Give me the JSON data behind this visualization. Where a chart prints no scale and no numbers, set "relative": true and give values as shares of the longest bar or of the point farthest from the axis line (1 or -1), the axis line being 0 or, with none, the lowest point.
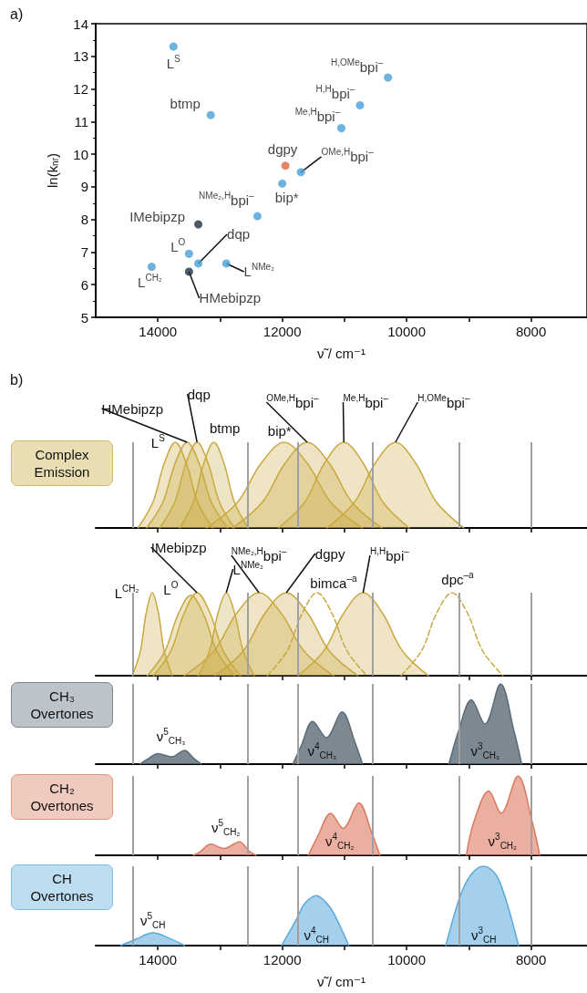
{
  "chart_data": [
    {
      "type": "scatter",
      "title": "a)",
      "xlabel": "ν̃ / cm⁻¹",
      "ylabel": "ln(k$_{nr}$)",
      "marker": "circle",
      "x": [
        13750,
        13150,
        10300,
        10750,
        11050,
        11950,
        11700,
        12000,
        12400,
        13350,
        13500,
        13350,
        12900,
        14100,
        13500
      ],
      "values": [
        13.3,
        11.2,
        12.35,
        11.5,
        10.8,
        9.65,
        9.45,
        9.1,
        8.1,
        7.85,
        6.95,
        6.65,
        6.65,
        6.55,
        6.4
      ],
      "colors": [
        "#4a9fd6",
        "#4a9fd6",
        "#4a9fd6",
        "#4a9fd6",
        "#4a9fd6",
        "#e0663e",
        "#4a9fd6",
        "#4a9fd6",
        "#4a9fd6",
        "#1e3140",
        "#4a9fd6",
        "#4a9fd6",
        "#4a9fd6",
        "#4a9fd6",
        "#1e3140"
      ],
      "xlim": [
        15000,
        7100
      ],
      "xticks": [
        14000,
        {
          "value": 13000,
          "label": null
        },
        12000,
        {
          "value": 11000,
          "label": null
        },
        10000,
        {
          "value": 9000,
          "label": null
        },
        8000
      ],
      "ylim": [
        5,
        14
      ],
      "yticks": [
        5,
        6,
        7,
        8,
        9,
        10,
        11,
        12,
        13,
        14
      ],
      "annotations": [
        {
          "text": "L$^{S}$",
          "x": 13750,
          "y": 13.3
        },
        {
          "text": "btmp",
          "x": 13150,
          "y": 11.2
        },
        {
          "text": "$^{H,OMe}$bpi$^{–}$",
          "x": 10300,
          "y": 12.35
        },
        {
          "text": "$^{H,H}$bpi$^{–}$",
          "x": 10750,
          "y": 11.5
        },
        {
          "text": "$^{Me,H}$bpi$^{–}$",
          "x": 11050,
          "y": 10.8
        },
        {
          "text": "dgpy",
          "x": 11950,
          "y": 9.65
        },
        {
          "text": "$^{OMe,H}$bpi$^{–}$",
          "x": 11700,
          "y": 9.45
        },
        {
          "text": "bip*",
          "x": 12000,
          "y": 9.1
        },
        {
          "text": "$^{NMe₂,H}$bpi$^{–}$",
          "x": 12400,
          "y": 8.1
        },
        {
          "text": "IMebipzp",
          "x": 13350,
          "y": 7.85
        },
        {
          "text": "L$^{O}$",
          "x": 13500,
          "y": 6.95
        },
        {
          "text": "dqp",
          "x": 13350,
          "y": 6.65
        },
        {
          "text": "L$^{NMe₂}$",
          "x": 12900,
          "y": 6.65
        },
        {
          "text": "L$^{CH₂}$",
          "x": 14100,
          "y": 6.55
        },
        {
          "text": "HMebipzp",
          "x": 13500,
          "y": 6.4
        }
      ]
    },
    {
      "type": "area",
      "title": "b)",
      "ylabel": "Complex Emission",
      "relative": true,
      "tick_labels": false,
      "xlim": [
        15000,
        7100
      ],
      "xticks": [
        14000,
        13000,
        12000,
        11000,
        10000,
        9000,
        8000
      ],
      "ref_lines": [
        {
          "axis": "x",
          "value": 14400,
          "color": "#a0a0a0"
        },
        {
          "axis": "x",
          "value": 12550,
          "color": "#a0a0a0"
        },
        {
          "axis": "x",
          "value": 11750,
          "color": "#a0a0a0"
        },
        {
          "axis": "x",
          "value": 10550,
          "color": "#a0a0a0"
        },
        {
          "axis": "x",
          "value": 9150,
          "color": "#a0a0a0"
        },
        {
          "axis": "x",
          "value": 8000,
          "color": "#a0a0a0"
        }
      ],
      "series": [
        {
          "name": "L$^{S}$",
          "color": "#c9a93f",
          "x": [
            14320,
            14080,
            13900,
            13720,
            13540,
            13360,
            13120
          ],
          "values": [
            0,
            0.3,
            0.75,
            1,
            0.75,
            0.3,
            0
          ]
        },
        {
          "name": "HMebipzp",
          "color": "#c7a841",
          "x": [
            14180,
            13920,
            13725,
            13530,
            13335,
            13140,
            12880
          ],
          "values": [
            0,
            0.3,
            0.75,
            1,
            0.75,
            0.3,
            0
          ]
        },
        {
          "name": "dqp",
          "color": "#cbaa3d",
          "x": [
            13970,
            13730,
            13550,
            13370,
            13190,
            13010,
            12770
          ],
          "values": [
            0,
            0.3,
            0.75,
            1,
            0.75,
            0.3,
            0
          ]
        },
        {
          "name": "btmp",
          "color": "#c8aa42",
          "x": [
            13650,
            13430,
            13265,
            13100,
            12935,
            12770,
            12550
          ],
          "values": [
            0,
            0.3,
            0.75,
            1,
            0.75,
            0.3,
            0
          ]
        },
        {
          "name": "bip*",
          "color": "#caa840",
          "x": [
            13220,
            12720,
            12345,
            11970,
            11595,
            11220,
            10720
          ],
          "values": [
            0,
            0.3,
            0.75,
            1,
            0.75,
            0.3,
            0
          ]
        },
        {
          "name": "$^{OMe,H}$bpi$^{–}$",
          "color": "#c8a73e",
          "x": [
            12800,
            12320,
            11960,
            11600,
            11240,
            10880,
            10400
          ],
          "values": [
            0,
            0.3,
            0.75,
            1,
            0.75,
            0.3,
            0
          ]
        },
        {
          "name": "$^{Me,H}$bpi$^{–}$",
          "color": "#cba941",
          "x": [
            12060,
            11640,
            11325,
            11010,
            10695,
            10380,
            9960
          ],
          "values": [
            0,
            0.3,
            0.75,
            1,
            0.75,
            0.3,
            0
          ]
        },
        {
          "name": "$^{H,OMe}$bpi$^{–}$",
          "color": "#c9a93f",
          "x": [
            11280,
            10840,
            10510,
            10180,
            9850,
            9520,
            9080
          ],
          "values": [
            0,
            0.3,
            0.75,
            1,
            0.75,
            0.3,
            0
          ]
        }
      ]
    },
    {
      "type": "area",
      "relative": true,
      "tick_labels": false,
      "xlim": [
        15000,
        7100
      ],
      "xticks": [
        14000,
        13000,
        12000,
        11000,
        10000,
        9000,
        8000
      ],
      "ref_lines": [
        {
          "axis": "x",
          "value": 14400,
          "color": "#a0a0a0"
        },
        {
          "axis": "x",
          "value": 12550,
          "color": "#a0a0a0"
        },
        {
          "axis": "x",
          "value": 11750,
          "color": "#a0a0a0"
        },
        {
          "axis": "x",
          "value": 10550,
          "color": "#a0a0a0"
        },
        {
          "axis": "x",
          "value": 9150,
          "color": "#a0a0a0"
        },
        {
          "axis": "x",
          "value": 8000,
          "color": "#a0a0a0"
        }
      ],
      "series": [
        {
          "name": "L$^{CH₂}$",
          "color": "#c9a93f",
          "x": [
            14410,
            14280,
            14190,
            14090,
            13990,
            13900,
            13770
          ],
          "values": [
            0,
            0.3,
            0.75,
            1,
            0.75,
            0.3,
            0
          ]
        },
        {
          "name": "L$^{O}$",
          "color": "#c7a841",
          "x": [
            14170,
            13890,
            13680,
            13470,
            13260,
            13050,
            12770
          ],
          "values": [
            0,
            0.29,
            0.73,
            0.97,
            0.73,
            0.29,
            0
          ]
        },
        {
          "name": "IMebipzp",
          "color": "#cbaa3d",
          "x": [
            14070,
            13790,
            13580,
            13370,
            13160,
            12950,
            12670
          ],
          "values": [
            0,
            0.3,
            0.75,
            1,
            0.75,
            0.3,
            0
          ]
        },
        {
          "name": "L$^{NMe₂}$",
          "color": "#c8aa42",
          "x": [
            13350,
            13170,
            13035,
            12900,
            12765,
            12630,
            12450
          ],
          "values": [
            0,
            0.3,
            0.75,
            1,
            0.75,
            0.3,
            0
          ]
        },
        {
          "name": "$^{NMe₂,H}$bpi$^{–}$",
          "color": "#caa840",
          "x": [
            13575,
            13095,
            12735,
            12375,
            12015,
            11655,
            11175
          ],
          "values": [
            0,
            0.3,
            0.75,
            1,
            0.75,
            0.3,
            0
          ]
        },
        {
          "name": "dgpy",
          "color": "#c8a73e",
          "x": [
            13085,
            12625,
            12280,
            11935,
            11590,
            11245,
            10785
          ],
          "values": [
            0,
            0.3,
            0.75,
            1,
            0.75,
            0.3,
            0
          ]
        },
        {
          "name": "bimca$^{–a}$",
          "type": "line",
          "line_style": "dashed",
          "color": "#c9a93f",
          "x": [
            12240,
            11920,
            11680,
            11440,
            11200,
            10960,
            10640
          ],
          "values": [
            0,
            0.3,
            0.75,
            1,
            0.75,
            0.3,
            0
          ]
        },
        {
          "name": "$^{H,H}$bpi$^{–}$",
          "color": "#cba941",
          "x": [
            11750,
            11330,
            11015,
            10700,
            10385,
            10070,
            9650
          ],
          "values": [
            0,
            0.3,
            0.75,
            1,
            0.75,
            0.3,
            0
          ]
        },
        {
          "name": "dpc$^{–a}$",
          "type": "line",
          "line_style": "dashed",
          "color": "#c9a93f",
          "x": [
            10090,
            9760,
            9520,
            9270,
            9020,
            8780,
            8450
          ],
          "values": [
            0,
            0.3,
            0.75,
            1,
            0.75,
            0.3,
            0
          ]
        }
      ]
    },
    {
      "type": "area",
      "ylabel": "CH₃ Overtones",
      "relative": true,
      "tick_labels": false,
      "xlim": [
        15000,
        7100
      ],
      "xticks": [
        14000,
        13000,
        12000,
        11000,
        10000,
        9000,
        8000
      ],
      "ref_lines": [
        {
          "axis": "x",
          "value": 14400,
          "color": "#a0a0a0"
        },
        {
          "axis": "x",
          "value": 12550,
          "color": "#a0a0a0"
        },
        {
          "axis": "x",
          "value": 11750,
          "color": "#a0a0a0"
        },
        {
          "axis": "x",
          "value": 10550,
          "color": "#a0a0a0"
        },
        {
          "axis": "x",
          "value": 9150,
          "color": "#a0a0a0"
        },
        {
          "axis": "x",
          "value": 8000,
          "color": "#a0a0a0"
        }
      ],
      "series": [
        {
          "name": "ν$^{5}$$_{CH₃}$",
          "color": "#5b6c78",
          "x": [
            14290,
            14170,
            14000,
            13780,
            13570,
            13420,
            13300
          ],
          "values": [
            0,
            0.06,
            0.13,
            0.09,
            0.17,
            0.07,
            0
          ]
        },
        {
          "name": "ν$^{4}$$_{CH₃}$",
          "color": "#5b6c78",
          "x": [
            11830,
            11700,
            11510,
            11290,
            11040,
            10830,
            10710
          ],
          "values": [
            0,
            0.22,
            0.53,
            0.33,
            0.65,
            0.27,
            0
          ]
        },
        {
          "name": "ν$^{3}$$_{CH₃}$",
          "color": "#5b6c78",
          "x": [
            9320,
            9170,
            8960,
            8740,
            8490,
            8270,
            8150
          ],
          "values": [
            0,
            0.4,
            0.8,
            0.5,
            1,
            0.4,
            0
          ]
        }
      ]
    },
    {
      "type": "area",
      "ylabel": "CH₂ Overtones",
      "relative": true,
      "tick_labels": false,
      "xlim": [
        15000,
        7100
      ],
      "xticks": [
        14000,
        13000,
        12000,
        11000,
        10000,
        9000,
        8000
      ],
      "ref_lines": [
        {
          "axis": "x",
          "value": 14400,
          "color": "#a0a0a0"
        },
        {
          "axis": "x",
          "value": 12550,
          "color": "#a0a0a0"
        },
        {
          "axis": "x",
          "value": 11750,
          "color": "#a0a0a0"
        },
        {
          "axis": "x",
          "value": 10550,
          "color": "#a0a0a0"
        },
        {
          "axis": "x",
          "value": 9150,
          "color": "#a0a0a0"
        },
        {
          "axis": "x",
          "value": 8000,
          "color": "#a0a0a0"
        }
      ],
      "series": [
        {
          "name": "ν$^{5}$$_{CH₂}$",
          "color": "#dc7a60",
          "x": [
            13430,
            13330,
            13150,
            12940,
            12690,
            12530,
            12420
          ],
          "values": [
            0,
            0.04,
            0.14,
            0.085,
            0.17,
            0.05,
            0
          ]
        },
        {
          "name": "ν$^{4}$$_{CH₂}$",
          "color": "#dc7a60",
          "x": [
            11580,
            11430,
            11220,
            11020,
            10770,
            10560,
            10430
          ],
          "values": [
            0,
            0.24,
            0.53,
            0.34,
            0.66,
            0.28,
            0
          ]
        },
        {
          "name": "ν$^{3}$$_{CH₂}$",
          "color": "#dc7a60",
          "x": [
            9040,
            8920,
            8680,
            8480,
            8210,
            7980,
            7860
          ],
          "values": [
            0,
            0.42,
            0.81,
            0.53,
            1,
            0.42,
            0
          ]
        }
      ]
    },
    {
      "type": "area",
      "ylabel": "CH Overtones",
      "xlabel": "ν̃ / cm⁻¹",
      "relative": true,
      "tick_labels": "x",
      "xlim": [
        15000,
        7100
      ],
      "xticks": [
        14000,
        {
          "value": 13000,
          "label": null
        },
        12000,
        {
          "value": 11000,
          "label": null
        },
        10000,
        {
          "value": 9000,
          "label": null
        },
        8000
      ],
      "ref_lines": [
        {
          "axis": "x",
          "value": 14400,
          "color": "#a0a0a0"
        },
        {
          "axis": "x",
          "value": 12550,
          "color": "#a0a0a0"
        },
        {
          "axis": "x",
          "value": 11750,
          "color": "#a0a0a0"
        },
        {
          "axis": "x",
          "value": 10550,
          "color": "#a0a0a0"
        },
        {
          "axis": "x",
          "value": 9150,
          "color": "#a0a0a0"
        },
        {
          "axis": "x",
          "value": 8000,
          "color": "#a0a0a0"
        }
      ],
      "series": [
        {
          "name": "ν$^{5}$$_{CH}$",
          "color": "#5aaadb",
          "x": [
            14600,
            14350,
            14080,
            13810,
            13570
          ],
          "values": [
            0,
            0.08,
            0.16,
            0.09,
            0
          ]
        },
        {
          "name": "ν$^{4}$$_{CH}$",
          "color": "#5aaadb",
          "x": [
            12010,
            11760,
            11640,
            11450,
            11280,
            11160,
            10930
          ],
          "values": [
            0,
            0.35,
            0.53,
            0.63,
            0.53,
            0.39,
            0
          ]
        },
        {
          "name": "ν$^{3}$$_{CH}$",
          "color": "#5aaadb",
          "x": [
            9370,
            9140,
            8960,
            8760,
            8570,
            8420,
            8200
          ],
          "values": [
            0,
            0.62,
            0.9,
            1,
            0.9,
            0.62,
            0
          ]
        }
      ]
    }
  ]
}
